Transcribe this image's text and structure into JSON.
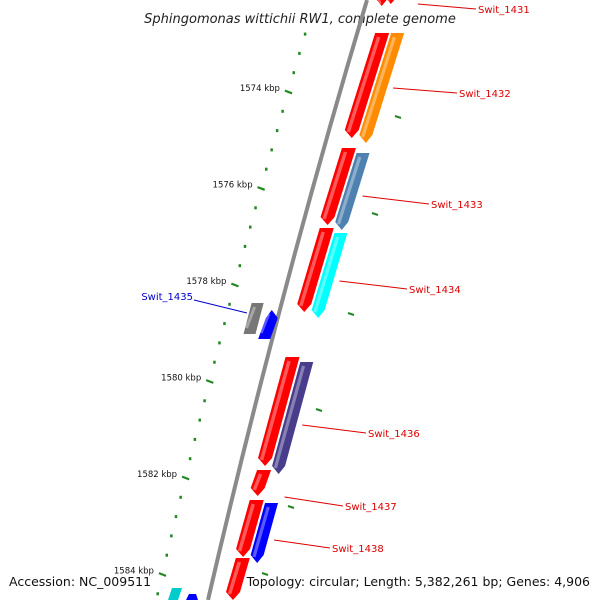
{
  "title": "Sphingomonas wittichii RW1, complete genome",
  "footer": {
    "accession": "Accession: NC_009511",
    "topology": "Topology: circular; Length: 5,382,261 bp; Genes: 4,906"
  },
  "colors": {
    "backbone": "#8a8a8a",
    "tick": "#228822",
    "label_forward": "#dd0000",
    "label_reverse": "#0000cc"
  },
  "ticks": [
    {
      "label": "1574 kbp"
    },
    {
      "label": "1576 kbp"
    },
    {
      "label": "1578 kbp"
    },
    {
      "label": "1580 kbp"
    },
    {
      "label": "1582 kbp"
    },
    {
      "label": "1584 kbp"
    }
  ],
  "genes": [
    {
      "label": "Swit_1431",
      "strand": "forward",
      "color": "#ff0000"
    },
    {
      "label": "Swit_1432",
      "strand": "forward",
      "color": "#ff8c00"
    },
    {
      "label": "Swit_1433",
      "strand": "forward",
      "color": "#4f81b0"
    },
    {
      "label": "Swit_1434",
      "strand": "forward",
      "color": "#00ffff"
    },
    {
      "label": "Swit_1435",
      "strand": "reverse",
      "color": "#0000ff"
    },
    {
      "label": "Swit_1436",
      "strand": "forward",
      "color": "#483d8b"
    },
    {
      "label": "Swit_1437",
      "strand": "forward",
      "color": "#ff0000"
    },
    {
      "label": "Swit_1438",
      "strand": "forward",
      "color": "#0000ff"
    }
  ]
}
